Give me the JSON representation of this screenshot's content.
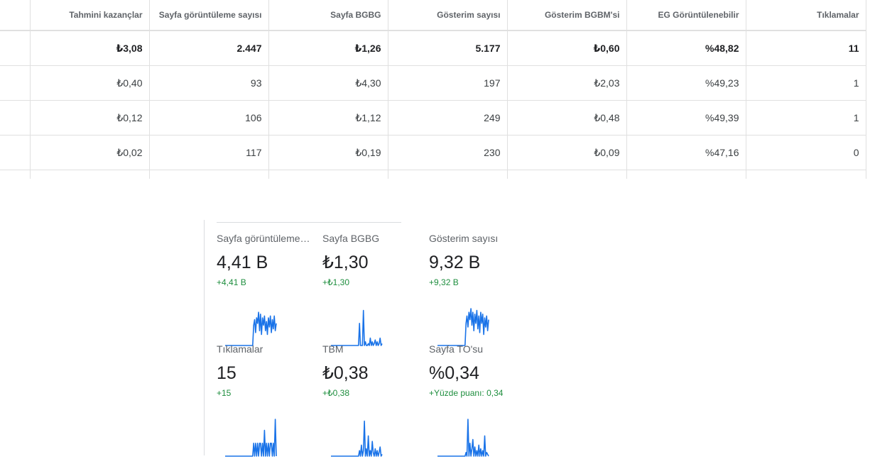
{
  "table": {
    "headers": [
      "",
      "Tahmini kazançlar",
      "Sayfa görüntüleme sayısı",
      "Sayfa BGBG",
      "Gösterim sayısı",
      "Gösterim BGBM'si",
      "EG Görüntülenebilir",
      "Tıklamalar"
    ],
    "rows": [
      [
        "",
        "₺3,08",
        "2.447",
        "₺1,26",
        "5.177",
        "₺0,60",
        "%48,82",
        "11"
      ],
      [
        "",
        "₺0,40",
        "93",
        "₺4,30",
        "197",
        "₺2,03",
        "%49,23",
        "1"
      ],
      [
        "",
        "₺0,12",
        "106",
        "₺1,12",
        "249",
        "₺0,48",
        "%49,39",
        "1"
      ],
      [
        "",
        "₺0,02",
        "117",
        "₺0,19",
        "230",
        "₺0,09",
        "%47,16",
        "0"
      ]
    ]
  },
  "scorecards": [
    {
      "label": "Sayfa görüntüleme sayısı",
      "value": "4,41 B",
      "delta": "+4,41 B",
      "spark": [
        0,
        0,
        0,
        0,
        0,
        0,
        0,
        0,
        0,
        0,
        0,
        0,
        0,
        0,
        0,
        0,
        0,
        0,
        0,
        0,
        0,
        0,
        0,
        0,
        0,
        0,
        0,
        0,
        0,
        0.55,
        0.7,
        0.35,
        0.75,
        0.6,
        0.9,
        0.4,
        0.85,
        0.3,
        0.75,
        0.55,
        0.8,
        0.4,
        0.65,
        0.3,
        0.75,
        0.5,
        0.8,
        0.35,
        0.7,
        0.45,
        0.8,
        0.4,
        0.6
      ]
    },
    {
      "label": "Sayfa BGBG",
      "value": "₺1,30",
      "delta": "+₺1,30",
      "spark": [
        0,
        0,
        0,
        0,
        0,
        0,
        0,
        0,
        0,
        0,
        0,
        0,
        0,
        0,
        0,
        0,
        0,
        0,
        0,
        0,
        0,
        0,
        0,
        0,
        0,
        0,
        0,
        0,
        0,
        0.6,
        0,
        0,
        0,
        0.95,
        0,
        0.1,
        0,
        0,
        0.05,
        0,
        0.2,
        0,
        0.1,
        0,
        0.05,
        0.15,
        0,
        0.1,
        0,
        0.05,
        0.2,
        0,
        0.05
      ]
    },
    {
      "label": "Gösterim sayısı",
      "value": "9,32 B",
      "delta": "+9,32 B",
      "spark": [
        0,
        0,
        0,
        0,
        0,
        0,
        0,
        0,
        0,
        0,
        0,
        0,
        0,
        0,
        0,
        0,
        0,
        0,
        0,
        0,
        0,
        0,
        0,
        0,
        0,
        0,
        0,
        0,
        0,
        0.6,
        0.8,
        0.5,
        0.9,
        0.7,
        1.0,
        0.55,
        0.9,
        0.4,
        0.85,
        0.6,
        0.95,
        0.45,
        0.8,
        0.35,
        0.9,
        0.6,
        0.85,
        0.3,
        0.75,
        0.5,
        0.8,
        0.4,
        0.7
      ]
    },
    {
      "label": "Tıklamalar",
      "value": "15",
      "delta": "+15",
      "spark": [
        0,
        0,
        0,
        0,
        0,
        0,
        0,
        0,
        0,
        0,
        0,
        0,
        0,
        0,
        0,
        0,
        0,
        0,
        0,
        0,
        0,
        0,
        0,
        0,
        0,
        0,
        0,
        0,
        0,
        0.35,
        0,
        0.35,
        0,
        0.35,
        0,
        0.35,
        0.35,
        0,
        0.35,
        0,
        0.7,
        0,
        0.35,
        0,
        0.35,
        0,
        0.35,
        0.35,
        0,
        0.35,
        0,
        1.0,
        0
      ]
    },
    {
      "label": "TBM",
      "value": "₺0,38",
      "delta": "+₺0,38",
      "spark": [
        0,
        0,
        0,
        0,
        0,
        0,
        0,
        0,
        0,
        0,
        0,
        0,
        0,
        0,
        0,
        0,
        0,
        0,
        0,
        0,
        0,
        0,
        0,
        0,
        0,
        0,
        0,
        0,
        0,
        0.15,
        0,
        0.3,
        0,
        0.15,
        0.95,
        0,
        0.2,
        0,
        0.55,
        0,
        0.15,
        0,
        0.4,
        0.1,
        0,
        0.2,
        0,
        0.15,
        0,
        0.1,
        0.25,
        0,
        0.05
      ]
    },
    {
      "label": "Sayfa TO'su",
      "value": "%0,34",
      "delta": "+Yüzde puanı: 0,34",
      "spark": [
        0,
        0,
        0,
        0,
        0,
        0,
        0,
        0,
        0,
        0,
        0,
        0,
        0,
        0,
        0,
        0,
        0,
        0,
        0,
        0,
        0,
        0,
        0,
        0,
        0,
        0,
        0,
        0,
        0,
        0.1,
        0,
        1.0,
        0,
        0.35,
        0,
        0.2,
        0.45,
        0,
        0.25,
        0,
        0.15,
        0,
        0.3,
        0,
        0.2,
        0,
        0.15,
        0,
        0.55,
        0,
        0.1,
        0.05,
        0
      ]
    }
  ],
  "colors": {
    "line": "#1a73e8",
    "positive": "#1e8e3e"
  }
}
